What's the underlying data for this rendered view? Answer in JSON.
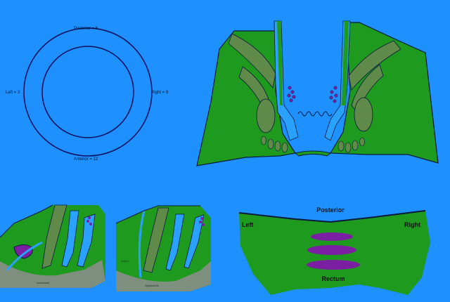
{
  "colors": {
    "background": "#1e90ff",
    "tissue_green": "#1e9a1e",
    "muscle_olive": "#5f8a4a",
    "skin_gray": "#7f8f7f",
    "canal_blue": "#1e90ff",
    "outline": "#0a1a3a",
    "lesion_purple": "#7b1fa2"
  },
  "clock_diagram": {
    "top": "Posterior = 6",
    "left": "Left = 3",
    "right": "Right = 9",
    "bottom": "Anterior = 12"
  },
  "bottom_left_panel": {
    "label_bottom": "Ischioanal"
  },
  "bottom_middle_panel": {
    "label_left": "Supra",
    "label_bottom": "Sphincteric"
  },
  "rectum_panel": {
    "top": "Posterior",
    "left": "Left",
    "right": "Right",
    "bottom": "Rectum",
    "lesion_count": 3
  }
}
